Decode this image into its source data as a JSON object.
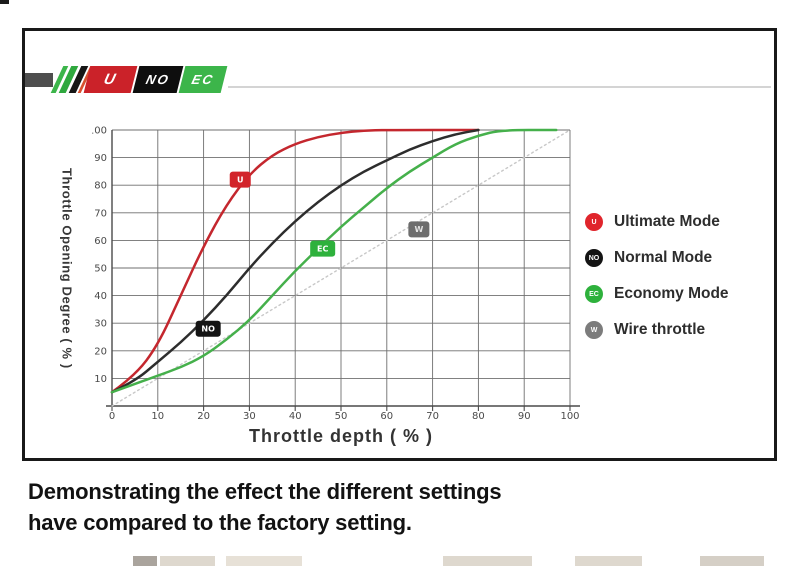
{
  "logo": {
    "slashes": [
      {
        "color": "#3cb54a"
      },
      {
        "color": "#2fa83e"
      },
      {
        "color": "#161616"
      },
      {
        "color": "#d8502f"
      }
    ],
    "badges": [
      {
        "label": "U",
        "color": "#cb2229"
      },
      {
        "label": "NO",
        "color": "#0e0e0e"
      },
      {
        "label": "EC",
        "color": "#3cb54a"
      }
    ]
  },
  "chart_data": {
    "type": "line",
    "title": "",
    "xlabel": "Throttle depth ( % )",
    "ylabel": "Throttle Opening Degree ( % )",
    "xlim": [
      0,
      100
    ],
    "ylim": [
      0,
      100
    ],
    "xticks": [
      0,
      10,
      20,
      30,
      40,
      50,
      60,
      70,
      80,
      90,
      100
    ],
    "yticks": [
      10,
      20,
      30,
      40,
      50,
      60,
      70,
      80,
      90,
      100
    ],
    "grid": true,
    "legend_position": "right",
    "series": [
      {
        "name": "Ultimate Mode",
        "color": "#c4272e",
        "style": "solid",
        "points": [
          [
            0,
            5
          ],
          [
            5,
            11
          ],
          [
            10,
            22
          ],
          [
            15,
            40
          ],
          [
            20,
            58
          ],
          [
            25,
            73
          ],
          [
            30,
            84
          ],
          [
            35,
            91
          ],
          [
            40,
            95
          ],
          [
            45,
            97.5
          ],
          [
            50,
            99
          ],
          [
            55,
            99.8
          ],
          [
            60,
            100
          ],
          [
            80,
            100
          ]
        ]
      },
      {
        "name": "Normal Mode",
        "color": "#2d2d2d",
        "style": "solid",
        "points": [
          [
            0,
            5
          ],
          [
            5,
            9
          ],
          [
            10,
            16
          ],
          [
            15,
            23
          ],
          [
            20,
            31
          ],
          [
            25,
            40
          ],
          [
            30,
            50
          ],
          [
            35,
            59
          ],
          [
            40,
            67
          ],
          [
            45,
            74
          ],
          [
            50,
            80
          ],
          [
            55,
            85
          ],
          [
            60,
            89
          ],
          [
            65,
            93
          ],
          [
            70,
            96
          ],
          [
            75,
            98.5
          ],
          [
            80,
            100
          ]
        ]
      },
      {
        "name": "Economy Mode",
        "color": "#45b04b",
        "style": "solid",
        "points": [
          [
            0,
            5
          ],
          [
            5,
            8
          ],
          [
            10,
            11
          ],
          [
            15,
            14
          ],
          [
            20,
            18
          ],
          [
            25,
            24
          ],
          [
            30,
            31
          ],
          [
            35,
            40
          ],
          [
            40,
            49
          ],
          [
            45,
            57
          ],
          [
            50,
            65
          ],
          [
            55,
            72
          ],
          [
            60,
            79
          ],
          [
            65,
            85
          ],
          [
            70,
            90
          ],
          [
            75,
            95
          ],
          [
            80,
            98
          ],
          [
            85,
            100
          ],
          [
            97,
            100
          ]
        ]
      },
      {
        "name": "Wire throttle",
        "color": "#c8c8c8",
        "style": "dotted",
        "points": [
          [
            0,
            0
          ],
          [
            100,
            100
          ]
        ]
      }
    ],
    "curve_badges": [
      {
        "label": "U",
        "x": 28,
        "y": 82,
        "color": "#d2232a",
        "text_color": "#ffffff"
      },
      {
        "label": "NO",
        "x": 21,
        "y": 28,
        "color": "#141414",
        "text_color": "#ffffff"
      },
      {
        "label": "EC",
        "x": 46,
        "y": 57,
        "color": "#2eb13c",
        "text_color": "#ffffff"
      },
      {
        "label": "W",
        "x": 67,
        "y": 64,
        "color": "#6d6d6d",
        "text_color": "#e3e3e3"
      }
    ]
  },
  "legend": {
    "items": [
      {
        "label": "Ultimate Mode",
        "dot_label": "U",
        "color": "#e0252c"
      },
      {
        "label": "Normal Mode",
        "dot_label": "NO",
        "color": "#141414"
      },
      {
        "label": "Economy Mode",
        "dot_label": "EC",
        "color": "#2eb13c"
      },
      {
        "label": "Wire throttle",
        "dot_label": "W",
        "color": "#7c7c7c"
      }
    ]
  },
  "caption": {
    "line1": "Demonstrating the effect the different settings",
    "line2": "have compared to the factory setting."
  }
}
